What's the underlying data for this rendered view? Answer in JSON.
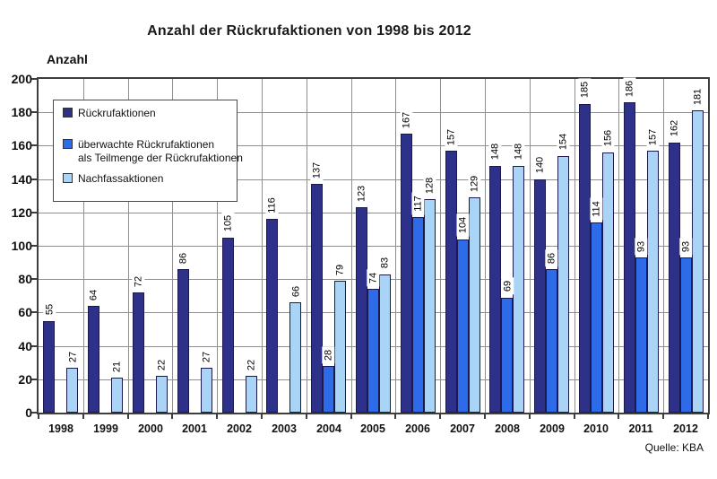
{
  "header": {
    "title": "Anzahl der Rückrufaktionen von 1998 bis 2012"
  },
  "axis": {
    "y_label": "Anzahl"
  },
  "footer": {
    "source": "Quelle: KBA"
  },
  "legend": {
    "items": [
      {
        "label": "Rückrufaktionen"
      },
      {
        "label": "überwachte Rückrufaktionen",
        "label2": "als Teilmenge der Rückrufaktionen"
      },
      {
        "label": "Nachfassaktionen"
      }
    ]
  },
  "colors": {
    "series_dark": "#2d3189",
    "series_medium": "#2d6be8",
    "series_light": "#aad4f5",
    "gridline": "#8f8f8f",
    "frame": "#3d3d3d"
  },
  "chart_data": {
    "type": "bar",
    "title": "Anzahl der Rückrufaktionen von 1998 bis 2012",
    "xlabel": "",
    "ylabel": "Anzahl",
    "source": "Quelle: KBA",
    "categories": [
      "1998",
      "1999",
      "2000",
      "2001",
      "2002",
      "2003",
      "2004",
      "2005",
      "2006",
      "2007",
      "2008",
      "2009",
      "2010",
      "2011",
      "2012"
    ],
    "series": [
      {
        "name": "Rückrufaktionen",
        "color": "#2d3189",
        "values": [
          55,
          64,
          72,
          86,
          105,
          116,
          137,
          123,
          167,
          157,
          148,
          140,
          185,
          186,
          162
        ]
      },
      {
        "name": "überwachte Rückrufaktionen als Teilmenge der Rückrufaktionen",
        "color": "#2d6be8",
        "values": [
          null,
          null,
          null,
          null,
          null,
          null,
          28,
          74,
          117,
          104,
          69,
          86,
          114,
          93,
          93
        ]
      },
      {
        "name": "Nachfassaktionen",
        "color": "#aad4f5",
        "values": [
          27,
          21,
          22,
          27,
          22,
          66,
          79,
          83,
          128,
          129,
          148,
          154,
          156,
          157,
          181
        ]
      }
    ],
    "ylim": [
      0,
      200
    ],
    "ytick_step": 20,
    "grid": true,
    "legend_position": "upper-left-inside",
    "bar_value_labels": "rotated-90-above-bar"
  }
}
